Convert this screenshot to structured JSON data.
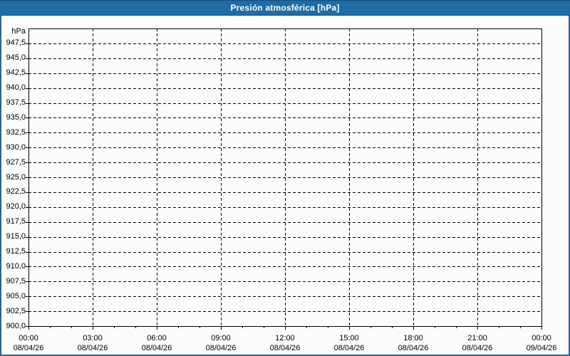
{
  "titlebar": {
    "title": "Presión atmosférica [hPa]"
  },
  "colors": {
    "titlebar_bg": "#1f6ca6",
    "titlebar_edge": "#14507c",
    "titlebar_text": "#ffffff",
    "frame_border": "#2b6496",
    "panel_bg": "#fcfdfa",
    "grid": "#000000",
    "axis": "#000000",
    "label_text": "#000000"
  },
  "chart_data": {
    "type": "line",
    "title": "Presión atmosférica [hPa]",
    "ylabel": "hPa",
    "y_axis": {
      "unit_label": "hPa",
      "min": 900,
      "max": 950,
      "tick_step": 2.5,
      "decimal_separator": ",",
      "tick_labels": [
        "947,5",
        "945,0",
        "942,5",
        "940,0",
        "937,5",
        "935,0",
        "932,5",
        "930,0",
        "927,5",
        "925,0",
        "922,5",
        "920,0",
        "917,5",
        "915,0",
        "912,5",
        "910,0",
        "907,5",
        "905,0",
        "902,5",
        "900,0"
      ]
    },
    "x_axis": {
      "hours_total": 24,
      "minor_tick_every_hours": 1,
      "major_tick_every_hours": 3,
      "major_ticks": [
        {
          "time": "00:00",
          "date": "08/04/26"
        },
        {
          "time": "03:00",
          "date": "08/04/26"
        },
        {
          "time": "06:00",
          "date": "08/04/26"
        },
        {
          "time": "09:00",
          "date": "08/04/26"
        },
        {
          "time": "12:00",
          "date": "08/04/26"
        },
        {
          "time": "15:00",
          "date": "08/04/26"
        },
        {
          "time": "18:00",
          "date": "08/04/26"
        },
        {
          "time": "21:00",
          "date": "08/04/26"
        },
        {
          "time": "00:00",
          "date": "09/04/26"
        }
      ]
    },
    "grid": {
      "style": "dashed",
      "horizontal": true,
      "vertical": true
    },
    "legend": "none",
    "series": []
  }
}
